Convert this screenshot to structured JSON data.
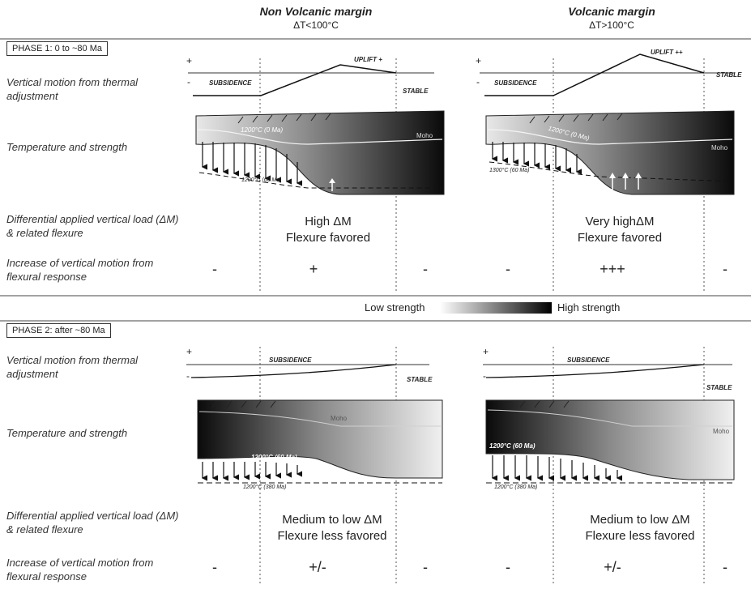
{
  "columns": {
    "left": {
      "title": "Non Volcanic margin",
      "subtitle": "ΔT<100°C"
    },
    "right": {
      "title": "Volcanic margin",
      "subtitle": "ΔT>100°C"
    }
  },
  "phase1": {
    "label": "PHASE 1: 0 to ~80 Ma",
    "row_vertical": "Vertical motion from thermal adjustment",
    "row_temp": "Temperature and strength",
    "row_load": "Differential applied vertical load (ΔM) & related flexure",
    "row_increase": "Increase of vertical motion from flexural response",
    "left": {
      "plus": "+",
      "minus": "-",
      "subsidence": "SUBSIDENCE",
      "uplift": "UPLIFT +",
      "stable": "STABLE",
      "iso1": "1200°C (0 Ma)",
      "iso2": "1200°C (60 Ma)",
      "moho": "Moho",
      "load_line1": "High ΔM",
      "load_line2": "Flexure favored",
      "inc": [
        "-",
        "+",
        "-"
      ]
    },
    "right": {
      "plus": "+",
      "minus": "-",
      "subsidence": "SUBSIDENCE",
      "uplift": "UPLIFT ++",
      "stable": "STABLE",
      "iso1": "1200°C (0 Ma)",
      "iso2": "1300°C (60 Ma)",
      "moho": "Moho",
      "load_line1": "Very highΔM",
      "load_line2": "Flexure favored",
      "inc": [
        "-",
        "+++",
        "-"
      ]
    }
  },
  "legend": {
    "low": "Low strength",
    "high": "High strength"
  },
  "phase2": {
    "label": "PHASE 2: after ~80 Ma",
    "row_vertical": "Vertical motion from thermal adjustment",
    "row_temp": "Temperature and strength",
    "row_load": "Differential applied vertical load (ΔM) & related flexure",
    "row_increase": "Increase of vertical motion from flexural response",
    "left": {
      "plus": "+",
      "minus": "-",
      "subsidence": "SUBSIDENCE",
      "stable": "STABLE",
      "iso1": "1200°C (60 Ma)",
      "iso2": "1200°C (380 Ma)",
      "moho": "Moho",
      "load_line1": "Medium to low ΔM",
      "load_line2": "Flexure less favored",
      "inc": [
        "-",
        "+/-",
        "-"
      ]
    },
    "right": {
      "plus": "+",
      "minus": "-",
      "subsidence": "SUBSIDENCE",
      "stable": "STABLE",
      "iso1": "1200°C (60 Ma)",
      "iso2": "1200°C (380 Ma)",
      "moho": "Moho",
      "load_line1": "Medium to low ΔM",
      "load_line2": "Flexure less favored",
      "inc": [
        "-",
        "+/-",
        "-"
      ]
    }
  }
}
